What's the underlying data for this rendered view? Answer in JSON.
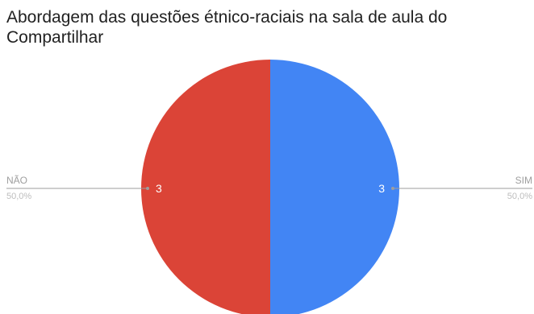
{
  "chart_data": {
    "type": "pie",
    "title": "Abordagem das questões étnico-raciais na sala de aula do Compartilhar",
    "slices": [
      {
        "label": "SIM",
        "value": 3,
        "percent_label": "50,0%",
        "value_label": "3",
        "color": "#4285f4",
        "side": "right"
      },
      {
        "label": "NÃO",
        "value": 3,
        "percent_label": "50,0%",
        "value_label": "3",
        "color": "#db4437",
        "side": "left"
      }
    ],
    "legend": "none",
    "label_color": "#9e9e9e",
    "leader_color": "#9e9e9e",
    "inner_label_color": "#ffffff"
  }
}
